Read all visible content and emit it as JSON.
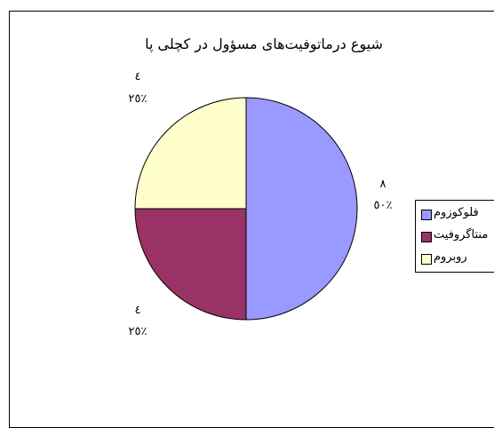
{
  "chart_data": {
    "type": "pie",
    "title": "شیوع درماتوفیت‌های مسؤول در کچلی پا",
    "categories": [
      "فلوکوزوم",
      "منتاگروفیت",
      "روبروم"
    ],
    "values": [
      8,
      4,
      4
    ],
    "value_labels": [
      "٨",
      "٤",
      "٤"
    ],
    "percent_labels": [
      "٥٠٪",
      "٢٥٪",
      "٢٥٪"
    ],
    "colors": [
      "#9999FF",
      "#993366",
      "#FFFFCC"
    ],
    "legend_position": "right",
    "grid": false
  }
}
